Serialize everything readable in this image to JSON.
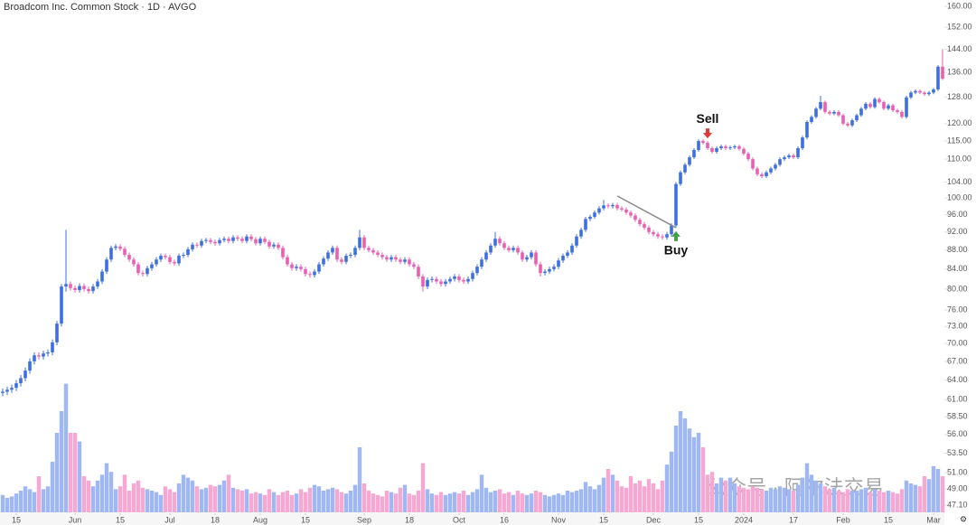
{
  "chart_data": {
    "type": "candlestick",
    "title": "Broadcom Inc. Common Stock · 1D · AVGO",
    "log": true,
    "ylim": [
      47.1,
      160
    ],
    "yticks": [
      {
        "value": 160,
        "label": "160.00"
      },
      {
        "value": 152,
        "label": "152.00"
      },
      {
        "value": 144,
        "label": "144.00"
      },
      {
        "value": 136,
        "label": "136.00"
      },
      {
        "value": 128,
        "label": "128.00"
      },
      {
        "value": 120,
        "label": "120.00"
      },
      {
        "value": 115,
        "label": "115.00"
      },
      {
        "value": 110,
        "label": "110.00"
      },
      {
        "value": 104,
        "label": "104.00"
      },
      {
        "value": 100,
        "label": "100.00"
      },
      {
        "value": 96,
        "label": "96.00"
      },
      {
        "value": 92,
        "label": "92.00"
      },
      {
        "value": 88,
        "label": "88.00"
      },
      {
        "value": 84,
        "label": "84.00"
      },
      {
        "value": 80,
        "label": "80.00"
      },
      {
        "value": 76,
        "label": "76.00"
      },
      {
        "value": 73,
        "label": "73.00"
      },
      {
        "value": 70,
        "label": "70.00"
      },
      {
        "value": 67,
        "label": "67.00"
      },
      {
        "value": 64,
        "label": "64.00"
      },
      {
        "value": 61,
        "label": "61.00"
      },
      {
        "value": 58.5,
        "label": "58.50"
      },
      {
        "value": 56,
        "label": "56.00"
      },
      {
        "value": 53.5,
        "label": "53.50"
      },
      {
        "value": 51,
        "label": "51.00"
      },
      {
        "value": 49,
        "label": "49.00"
      },
      {
        "value": 47.1,
        "label": "47.10"
      }
    ],
    "xlim": [
      -0.6,
      208.4
    ],
    "xticks": [
      {
        "value": 3,
        "label": "15"
      },
      {
        "value": 16,
        "label": "Jun"
      },
      {
        "value": 26,
        "label": "15"
      },
      {
        "value": 37,
        "label": "Jul"
      },
      {
        "value": 47,
        "label": "18"
      },
      {
        "value": 57,
        "label": "Aug"
      },
      {
        "value": 67,
        "label": "15"
      },
      {
        "value": 80,
        "label": "Sep"
      },
      {
        "value": 90,
        "label": "18"
      },
      {
        "value": 101,
        "label": "Oct"
      },
      {
        "value": 111,
        "label": "16"
      },
      {
        "value": 123,
        "label": "Nov"
      },
      {
        "value": 133,
        "label": "15"
      },
      {
        "value": 144,
        "label": "Dec"
      },
      {
        "value": 154,
        "label": "15"
      },
      {
        "value": 164,
        "label": "2024"
      },
      {
        "value": 175,
        "label": "17"
      },
      {
        "value": 186,
        "label": "Feb"
      },
      {
        "value": 196,
        "label": "15"
      },
      {
        "value": 206,
        "label": "Mar"
      }
    ],
    "up_color": "#3d6fe0",
    "down_color": "#ea5fb3",
    "volume_up_color": "#9fb7f2",
    "volume_down_color": "#f6a8d3",
    "y2lim": [
      0,
      10
    ],
    "candles": {
      "open": [
        62.0,
        62.2,
        62.5,
        62.8,
        63.5,
        64.3,
        65.5,
        67.0,
        68.0,
        67.8,
        68.3,
        68.5,
        70.2,
        73.5,
        80.5,
        81.0,
        80.2,
        79.8,
        80.6,
        80.0,
        79.6,
        80.5,
        81.5,
        83.5,
        86.0,
        88.5,
        88.8,
        88.3,
        87.0,
        86.0,
        85.0,
        83.2,
        83.0,
        84.2,
        85.0,
        86.0,
        86.8,
        86.5,
        85.5,
        85.2,
        86.8,
        87.0,
        88.2,
        89.2,
        89.0,
        90.0,
        90.2,
        89.8,
        89.5,
        90.2,
        90.5,
        90.0,
        90.8,
        90.5,
        90.0,
        91.0,
        90.4,
        89.5,
        90.5,
        89.8,
        88.8,
        89.2,
        88.5,
        86.5,
        85.0,
        84.2,
        84.5,
        84.0,
        83.0,
        82.8,
        83.5,
        85.0,
        86.2,
        87.5,
        88.5,
        86.0,
        85.5,
        86.8,
        87.0,
        88.5,
        90.8,
        88.5,
        88.0,
        87.5,
        87.0,
        86.5,
        86.0,
        86.5,
        86.0,
        85.5,
        86.0,
        85.0,
        84.5,
        82.5,
        80.5,
        81.8,
        82.0,
        81.5,
        81.0,
        81.5,
        82.0,
        82.5,
        81.8,
        81.5,
        82.0,
        83.2,
        84.5,
        86.0,
        87.5,
        89.0,
        90.5,
        89.5,
        88.5,
        88.0,
        88.5,
        87.5,
        86.0,
        86.5,
        87.5,
        85.0,
        83.2,
        83.5,
        84.0,
        84.5,
        85.8,
        86.8,
        87.5,
        89.0,
        91.0,
        92.5,
        95.0,
        95.5,
        96.5,
        97.5,
        98.2,
        98.0,
        98.3,
        97.5,
        97.2,
        96.5,
        95.8,
        94.8,
        93.8,
        93.0,
        92.0,
        91.5,
        91.0,
        90.8,
        91.5,
        93.5,
        103.5,
        106.5,
        108.5,
        110.5,
        112.5,
        115.0,
        114.5,
        113.0,
        112.0,
        113.0,
        113.5,
        113.0,
        113.2,
        113.5,
        112.8,
        111.5,
        110.0,
        107.5,
        106.0,
        105.5,
        106.5,
        107.5,
        108.5,
        110.0,
        110.5,
        111.0,
        110.5,
        113.0,
        116.0,
        120.5,
        122.0,
        124.5,
        126.5,
        123.5,
        123.0,
        123.5,
        122.5,
        120.0,
        119.5,
        121.0,
        122.5,
        124.5,
        126.0,
        125.0,
        127.5,
        126.5,
        124.5,
        125.5,
        124.0,
        123.5,
        122.0,
        128.0,
        129.5,
        130.0,
        129.5,
        129.0,
        129.5,
        130.5,
        138.0
      ],
      "high": [
        62.7,
        63.0,
        63.3,
        64.0,
        64.8,
        66.0,
        67.5,
        68.5,
        68.5,
        68.8,
        69.0,
        70.7,
        74.0,
        81.0,
        92.5,
        81.5,
        80.7,
        81.1,
        81.1,
        80.5,
        81.0,
        82.0,
        84.0,
        86.5,
        89.0,
        89.3,
        89.3,
        88.8,
        87.5,
        86.5,
        85.5,
        83.7,
        84.7,
        85.5,
        86.5,
        87.3,
        87.3,
        87.0,
        86.0,
        87.3,
        87.5,
        88.7,
        89.7,
        89.7,
        90.5,
        90.7,
        90.7,
        90.3,
        90.7,
        91.0,
        91.0,
        91.3,
        91.3,
        91.0,
        91.5,
        91.5,
        90.9,
        91.0,
        91.0,
        90.3,
        89.7,
        89.7,
        89.0,
        87.0,
        85.5,
        85.0,
        85.0,
        84.5,
        83.5,
        84.0,
        85.5,
        86.7,
        88.0,
        89.0,
        89.0,
        86.5,
        87.3,
        87.5,
        89.0,
        92.5,
        91.3,
        89.0,
        88.5,
        88.0,
        87.5,
        87.0,
        87.0,
        87.0,
        86.5,
        86.5,
        86.5,
        85.5,
        85.0,
        83.0,
        82.3,
        82.5,
        82.5,
        82.0,
        82.0,
        82.5,
        83.0,
        83.0,
        82.3,
        82.5,
        83.7,
        85.0,
        86.5,
        88.0,
        89.5,
        92.0,
        91.0,
        90.0,
        89.0,
        89.0,
        89.0,
        88.0,
        87.0,
        88.0,
        88.0,
        85.5,
        84.0,
        84.5,
        85.0,
        86.3,
        87.3,
        88.0,
        89.5,
        91.5,
        93.0,
        95.5,
        96.0,
        97.0,
        98.0,
        99.5,
        98.7,
        98.8,
        98.8,
        98.0,
        97.7,
        97.0,
        96.3,
        95.3,
        94.3,
        93.5,
        92.5,
        92.0,
        91.5,
        92.0,
        94.0,
        104.0,
        107.0,
        109.0,
        111.0,
        113.0,
        115.5,
        115.5,
        115.0,
        113.5,
        113.5,
        114.0,
        114.0,
        113.7,
        114.0,
        114.0,
        113.3,
        112.0,
        110.5,
        108.0,
        106.5,
        107.0,
        108.0,
        109.0,
        110.5,
        111.0,
        111.5,
        111.5,
        113.5,
        116.5,
        121.0,
        122.5,
        125.0,
        128.5,
        127.0,
        124.0,
        124.0,
        124.0,
        123.0,
        120.5,
        121.5,
        123.0,
        125.0,
        126.5,
        126.5,
        128.0,
        128.0,
        127.0,
        126.0,
        126.0,
        124.5,
        124.0,
        128.5,
        130.0,
        130.5,
        130.5,
        130.0,
        130.0,
        131.0,
        138.5,
        144.0
      ],
      "low": [
        61.5,
        61.7,
        62.0,
        62.3,
        63.0,
        63.8,
        65.0,
        66.5,
        67.3,
        67.3,
        67.8,
        68.0,
        69.7,
        73.0,
        79.5,
        79.7,
        79.3,
        79.3,
        79.5,
        79.1,
        79.1,
        80.0,
        81.0,
        83.0,
        85.5,
        88.0,
        87.8,
        86.5,
        85.5,
        84.5,
        82.7,
        82.5,
        82.5,
        83.7,
        84.5,
        85.5,
        86.0,
        85.0,
        84.7,
        84.7,
        86.3,
        86.5,
        87.7,
        88.5,
        88.5,
        89.5,
        89.3,
        89.0,
        89.0,
        89.7,
        89.5,
        89.5,
        90.0,
        89.5,
        89.5,
        89.9,
        89.0,
        89.0,
        89.3,
        88.3,
        88.3,
        88.0,
        86.0,
        84.5,
        83.7,
        83.7,
        83.5,
        82.5,
        82.3,
        82.3,
        83.0,
        84.5,
        85.7,
        87.0,
        85.5,
        85.0,
        85.0,
        86.3,
        86.5,
        88.0,
        88.0,
        87.5,
        87.0,
        86.5,
        86.0,
        85.5,
        85.5,
        85.5,
        85.0,
        85.0,
        84.5,
        84.0,
        82.0,
        79.5,
        80.0,
        81.3,
        81.0,
        80.5,
        80.5,
        81.0,
        81.5,
        81.3,
        81.0,
        81.0,
        81.5,
        82.7,
        84.0,
        85.5,
        87.0,
        88.5,
        89.0,
        88.0,
        87.5,
        87.5,
        87.0,
        85.5,
        85.5,
        86.0,
        84.5,
        82.5,
        82.7,
        83.0,
        83.5,
        84.0,
        85.3,
        86.3,
        87.0,
        88.5,
        90.5,
        92.0,
        94.5,
        95.0,
        96.0,
        97.0,
        97.5,
        97.5,
        97.0,
        96.7,
        96.0,
        95.3,
        94.3,
        93.3,
        92.5,
        91.5,
        91.0,
        90.5,
        90.3,
        90.3,
        91.0,
        93.0,
        103.0,
        106.0,
        108.0,
        110.0,
        112.0,
        114.0,
        112.5,
        111.5,
        111.5,
        112.5,
        112.5,
        112.5,
        112.7,
        112.3,
        111.0,
        109.5,
        107.0,
        105.5,
        105.0,
        105.0,
        106.0,
        107.0,
        108.0,
        109.5,
        110.0,
        110.0,
        110.0,
        112.5,
        115.5,
        120.0,
        121.5,
        124.0,
        123.0,
        122.5,
        122.5,
        122.0,
        119.5,
        119.0,
        119.0,
        120.5,
        122.0,
        124.0,
        124.5,
        124.5,
        126.0,
        124.0,
        124.0,
        123.5,
        123.0,
        121.5,
        121.5,
        127.5,
        129.0,
        129.0,
        128.5,
        128.5,
        129.0,
        130.0,
        133.5
      ],
      "close": [
        62.2,
        62.5,
        62.8,
        63.5,
        64.3,
        65.5,
        67.0,
        68.0,
        67.8,
        68.3,
        68.5,
        70.2,
        73.5,
        80.5,
        81.0,
        80.2,
        79.8,
        80.6,
        80.0,
        79.6,
        80.5,
        81.5,
        83.5,
        86.0,
        88.5,
        88.8,
        88.3,
        87.0,
        86.0,
        85.0,
        83.2,
        83.0,
        84.2,
        85.0,
        86.0,
        86.8,
        86.5,
        85.5,
        85.2,
        86.8,
        87.0,
        88.2,
        89.2,
        89.0,
        90.0,
        90.2,
        89.8,
        89.5,
        90.2,
        90.5,
        90.0,
        90.8,
        90.5,
        90.0,
        91.0,
        90.4,
        89.5,
        90.5,
        89.8,
        88.8,
        89.2,
        88.5,
        86.5,
        85.0,
        84.2,
        84.5,
        84.0,
        83.0,
        82.8,
        83.5,
        85.0,
        86.2,
        87.5,
        88.5,
        86.0,
        85.5,
        86.8,
        87.0,
        88.5,
        90.8,
        88.5,
        88.0,
        87.5,
        87.0,
        86.5,
        86.0,
        86.5,
        86.0,
        85.5,
        86.0,
        85.0,
        84.5,
        82.5,
        80.5,
        81.8,
        82.0,
        81.5,
        81.0,
        81.5,
        82.0,
        82.5,
        81.8,
        81.5,
        82.0,
        83.2,
        84.5,
        86.0,
        87.5,
        89.0,
        90.5,
        89.5,
        88.5,
        88.0,
        88.5,
        87.5,
        86.0,
        86.5,
        87.5,
        85.0,
        83.2,
        83.5,
        84.0,
        84.5,
        85.8,
        86.8,
        87.5,
        89.0,
        91.0,
        92.5,
        95.0,
        95.5,
        96.5,
        97.5,
        98.2,
        98.0,
        98.3,
        97.5,
        97.2,
        96.5,
        95.8,
        94.8,
        93.8,
        93.0,
        92.0,
        91.5,
        91.0,
        90.8,
        91.5,
        93.5,
        103.5,
        106.5,
        108.5,
        110.5,
        112.5,
        115.0,
        114.5,
        113.0,
        112.0,
        113.0,
        113.5,
        113.0,
        113.2,
        113.5,
        112.8,
        111.5,
        110.0,
        107.5,
        106.0,
        105.5,
        106.5,
        107.5,
        108.5,
        110.0,
        110.5,
        111.0,
        110.5,
        113.0,
        116.0,
        120.5,
        122.0,
        124.5,
        126.5,
        123.5,
        123.0,
        123.5,
        122.5,
        120.0,
        119.5,
        121.0,
        122.5,
        124.5,
        126.0,
        125.0,
        127.5,
        126.5,
        124.5,
        125.5,
        124.0,
        123.5,
        122.0,
        128.0,
        129.5,
        130.0,
        129.5,
        129.0,
        129.5,
        130.5,
        138.0,
        134.0
      ]
    },
    "volume": [
      1.2,
      1.0,
      1.1,
      1.3,
      1.5,
      1.8,
      1.6,
      1.4,
      2.5,
      1.6,
      1.8,
      3.5,
      5.5,
      7.0,
      8.9,
      5.5,
      5.5,
      4.9,
      2.5,
      2.2,
      1.8,
      2.2,
      2.6,
      3.4,
      2.8,
      1.6,
      1.8,
      2.6,
      1.5,
      2.0,
      2.2,
      1.7,
      1.6,
      1.5,
      1.4,
      1.2,
      1.8,
      1.6,
      1.4,
      2.0,
      2.6,
      2.4,
      2.2,
      1.8,
      1.6,
      1.7,
      1.9,
      1.8,
      1.9,
      2.2,
      2.6,
      1.7,
      1.6,
      1.5,
      1.6,
      1.3,
      1.4,
      1.3,
      1.2,
      1.6,
      1.4,
      1.2,
      1.4,
      1.5,
      1.2,
      1.3,
      1.6,
      1.4,
      1.7,
      1.9,
      1.8,
      1.5,
      1.6,
      1.7,
      1.6,
      1.4,
      1.3,
      1.5,
      1.9,
      4.5,
      2.0,
      1.5,
      1.3,
      1.2,
      1.1,
      1.5,
      1.4,
      1.3,
      1.7,
      1.9,
      1.3,
      1.2,
      1.5,
      3.4,
      1.6,
      1.3,
      1.2,
      1.4,
      1.2,
      1.3,
      1.4,
      1.3,
      1.5,
      1.2,
      1.4,
      1.6,
      2.6,
      1.7,
      1.4,
      1.5,
      1.6,
      1.3,
      1.4,
      1.2,
      1.5,
      1.3,
      1.2,
      1.3,
      1.5,
      1.4,
      1.2,
      1.1,
      1.2,
      1.3,
      1.2,
      1.5,
      1.4,
      1.5,
      1.6,
      2.1,
      1.8,
      1.6,
      1.9,
      2.4,
      3.0,
      2.6,
      2.2,
      1.8,
      1.7,
      2.5,
      2.0,
      2.2,
      1.8,
      2.3,
      2.0,
      1.6,
      2.2,
      3.3,
      4.2,
      6.0,
      7.0,
      6.5,
      5.8,
      5.2,
      5.5,
      4.5,
      2.6,
      2.8,
      2.0,
      2.4,
      2.2,
      2.4,
      2.0,
      1.8,
      1.7,
      1.6,
      1.8,
      1.7,
      1.6,
      1.5,
      1.7,
      1.6,
      1.8,
      1.7,
      1.6,
      1.5,
      1.9,
      2.4,
      3.4,
      2.6,
      2.2,
      2.0,
      1.8,
      1.6,
      1.7,
      1.5,
      1.4,
      1.6,
      1.5,
      1.5,
      1.6,
      1.7,
      1.4,
      1.6,
      1.5,
      1.4,
      1.5,
      1.4,
      1.3,
      1.6,
      2.2,
      2.0,
      1.9,
      1.8,
      2.5,
      2.3,
      3.2,
      3.0,
      2.5
    ],
    "trendline": {
      "x": [
        136,
        149
      ],
      "y": [
        100.5,
        93
      ],
      "color": "#8a8a8a"
    },
    "annotations": [
      {
        "text": "Sell",
        "x": 156,
        "color": "#e53935"
      },
      {
        "text": "Buy",
        "x": 149,
        "color": "#43a047"
      }
    ],
    "watermark": "公众号 · 阿尔法交易"
  }
}
